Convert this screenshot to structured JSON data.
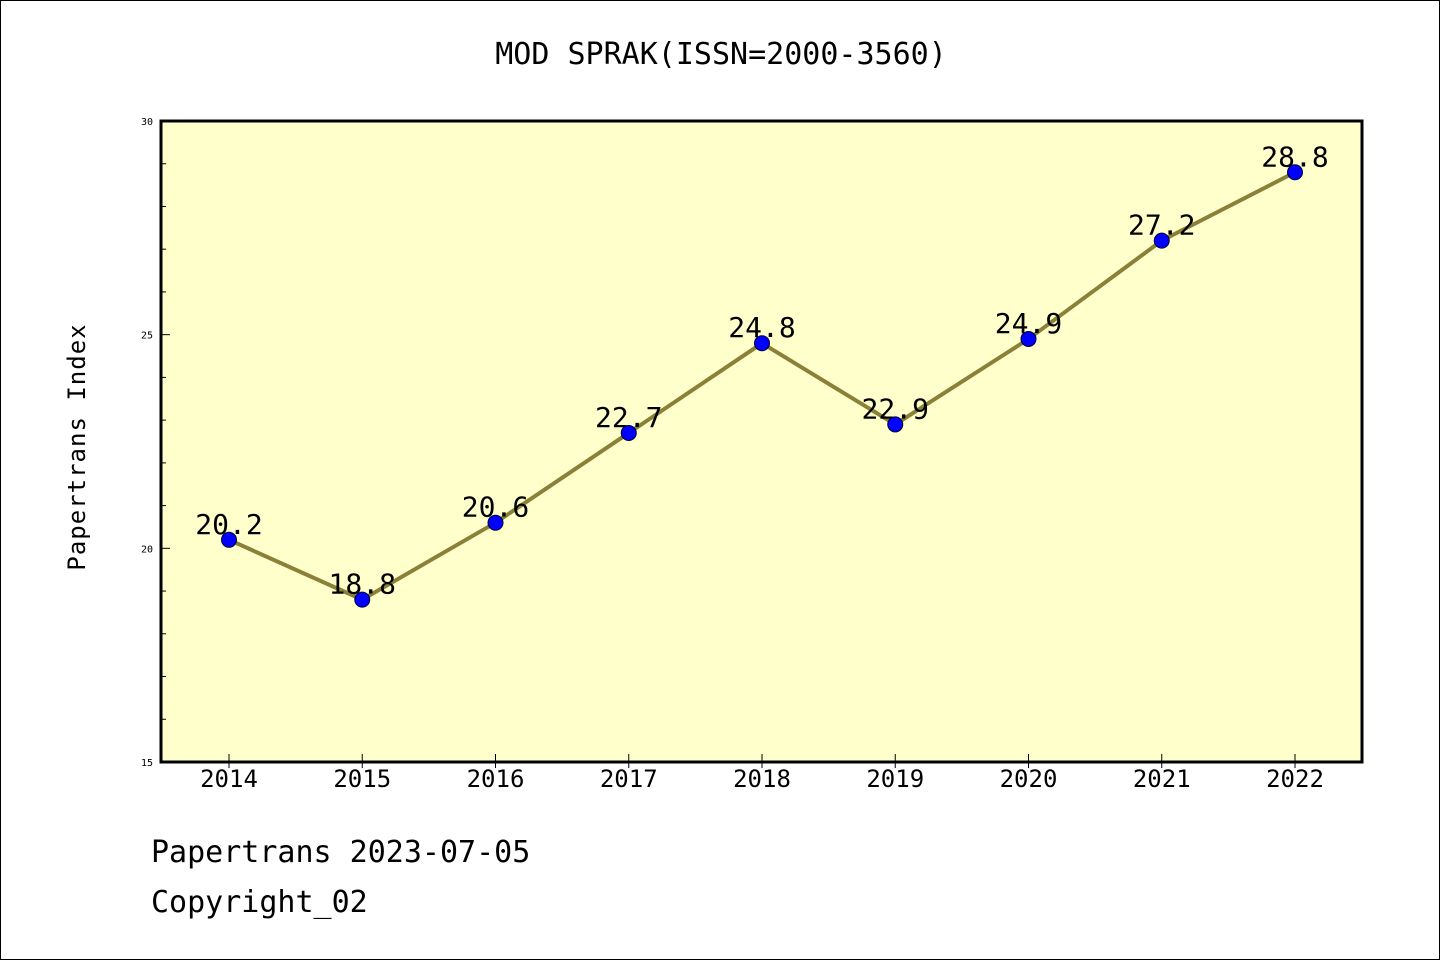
{
  "chart_data": {
    "type": "line",
    "title": "MOD SPRAK(ISSN=2000-3560)",
    "xlabel": "",
    "ylabel": "Papertrans Index",
    "categories": [
      "2014",
      "2015",
      "2016",
      "2017",
      "2018",
      "2019",
      "2020",
      "2021",
      "2022"
    ],
    "series": [
      {
        "values": [
          20.2,
          18.8,
          20.6,
          22.7,
          24.8,
          22.9,
          24.9,
          27.2,
          28.8
        ],
        "data_labels": [
          "20.2",
          "18.8",
          "20.6",
          "22.7",
          "24.8",
          "22.9",
          "24.9",
          "27.2",
          "28.8"
        ]
      }
    ],
    "ylim": [
      15,
      30
    ],
    "yticks": [
      "15",
      "20",
      "25",
      "30"
    ],
    "grid": false,
    "colors": {
      "plot_background": "#ffffcc",
      "line": "#8b8038",
      "marker": "#0000ff"
    }
  },
  "footer": {
    "line1": "Papertrans 2023-07-05",
    "line2": "Copyright_02"
  }
}
